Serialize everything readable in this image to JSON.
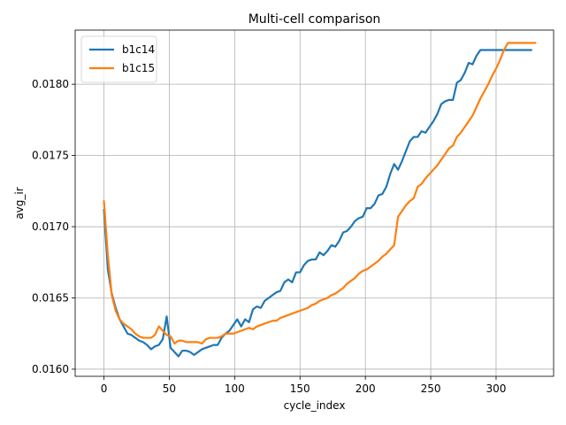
{
  "chart_data": {
    "type": "line",
    "title": "Multi-cell comparison",
    "xlabel": "cycle_index",
    "ylabel": "avg_ir",
    "xlim": [
      -22,
      344
    ],
    "ylim": [
      0.01595,
      0.01838
    ],
    "xticks": [
      0,
      50,
      100,
      150,
      200,
      250,
      300
    ],
    "yticks": [
      0.016,
      0.0165,
      0.017,
      0.0175,
      0.018
    ],
    "ytick_labels": [
      "0.0160",
      "0.0165",
      "0.0170",
      "0.0175",
      "0.0180"
    ],
    "grid": true,
    "legend_position": "top-left",
    "series": [
      {
        "name": "b1c14",
        "color": "#1f77b4",
        "x": [
          0,
          3,
          6,
          9,
          12,
          15,
          18,
          21,
          24,
          27,
          30,
          33,
          36,
          39,
          42,
          45,
          48,
          51,
          54,
          57,
          60,
          63,
          66,
          69,
          72,
          75,
          78,
          81,
          84,
          87,
          90,
          93,
          96,
          99,
          102,
          105,
          108,
          111,
          114,
          117,
          120,
          123,
          126,
          129,
          132,
          135,
          138,
          141,
          144,
          147,
          150,
          153,
          156,
          159,
          162,
          165,
          168,
          171,
          174,
          177,
          180,
          183,
          186,
          189,
          192,
          195,
          198,
          201,
          204,
          207,
          210,
          213,
          216,
          219,
          222,
          225,
          228,
          231,
          234,
          237,
          240,
          243,
          246,
          249,
          252,
          255,
          258,
          261,
          264,
          267,
          270,
          273,
          276,
          279,
          282,
          285,
          288,
          291,
          294,
          297,
          300,
          303,
          306,
          309,
          312,
          315,
          318,
          321,
          324,
          327
        ],
        "y": [
          0.01712,
          0.0167,
          0.01653,
          0.01643,
          0.01635,
          0.0163,
          0.01625,
          0.01624,
          0.01622,
          0.0162,
          0.01619,
          0.01617,
          0.01614,
          0.01616,
          0.01617,
          0.01621,
          0.01637,
          0.01615,
          0.01612,
          0.01609,
          0.01613,
          0.01613,
          0.01612,
          0.0161,
          0.01612,
          0.01614,
          0.01615,
          0.01616,
          0.01617,
          0.01617,
          0.01622,
          0.01625,
          0.01627,
          0.01631,
          0.01635,
          0.0163,
          0.01635,
          0.01633,
          0.01642,
          0.01644,
          0.01643,
          0.01648,
          0.0165,
          0.01652,
          0.01654,
          0.01655,
          0.01661,
          0.01663,
          0.01661,
          0.01668,
          0.01668,
          0.01673,
          0.01676,
          0.01677,
          0.01677,
          0.01682,
          0.0168,
          0.01683,
          0.01687,
          0.01686,
          0.0169,
          0.01696,
          0.01697,
          0.017,
          0.01704,
          0.01706,
          0.01707,
          0.01713,
          0.01713,
          0.01716,
          0.01722,
          0.01723,
          0.01728,
          0.01737,
          0.01744,
          0.0174,
          0.01746,
          0.01753,
          0.0176,
          0.01763,
          0.01763,
          0.01767,
          0.01766,
          0.0177,
          0.01774,
          0.01779,
          0.01786,
          0.01788,
          0.01789,
          0.01789,
          0.01801,
          0.01803,
          0.01808,
          0.01815,
          0.01814,
          0.0182,
          0.01824,
          0.01824,
          0.01824,
          0.01824,
          0.01824,
          0.01824,
          0.01824,
          0.01824,
          0.01824,
          0.01824,
          0.01824,
          0.01824,
          0.01824,
          0.01824
        ]
      },
      {
        "name": "b1c15",
        "color": "#ff7f0e",
        "x": [
          0,
          3,
          6,
          9,
          12,
          15,
          18,
          21,
          24,
          27,
          30,
          33,
          36,
          39,
          42,
          45,
          48,
          51,
          54,
          57,
          60,
          63,
          66,
          69,
          72,
          75,
          78,
          81,
          84,
          87,
          90,
          93,
          96,
          99,
          102,
          105,
          108,
          111,
          114,
          117,
          120,
          123,
          126,
          129,
          132,
          135,
          138,
          141,
          144,
          147,
          150,
          153,
          156,
          159,
          162,
          165,
          168,
          171,
          174,
          177,
          180,
          183,
          186,
          189,
          192,
          195,
          198,
          201,
          204,
          207,
          210,
          213,
          216,
          219,
          222,
          225,
          228,
          231,
          234,
          237,
          240,
          243,
          246,
          249,
          252,
          255,
          258,
          261,
          264,
          267,
          270,
          273,
          276,
          279,
          282,
          285,
          288,
          291,
          294,
          297,
          300,
          303,
          306,
          309,
          312,
          315,
          318,
          321,
          324,
          327,
          330
        ],
        "y": [
          0.01718,
          0.0168,
          0.01652,
          0.01641,
          0.01635,
          0.01632,
          0.0163,
          0.01628,
          0.01625,
          0.01623,
          0.01622,
          0.01622,
          0.01622,
          0.01624,
          0.0163,
          0.01627,
          0.01624,
          0.01623,
          0.01618,
          0.0162,
          0.0162,
          0.01619,
          0.01619,
          0.01619,
          0.01619,
          0.01618,
          0.01621,
          0.01622,
          0.01622,
          0.01622,
          0.01623,
          0.01625,
          0.01625,
          0.01625,
          0.01626,
          0.01627,
          0.01628,
          0.01629,
          0.01628,
          0.0163,
          0.01631,
          0.01632,
          0.01633,
          0.01634,
          0.01634,
          0.01636,
          0.01637,
          0.01638,
          0.01639,
          0.0164,
          0.01641,
          0.01642,
          0.01643,
          0.01645,
          0.01646,
          0.01648,
          0.01649,
          0.0165,
          0.01652,
          0.01653,
          0.01655,
          0.01657,
          0.0166,
          0.01662,
          0.01664,
          0.01667,
          0.01669,
          0.0167,
          0.01672,
          0.01674,
          0.01676,
          0.01679,
          0.01681,
          0.01684,
          0.01687,
          0.01707,
          0.01711,
          0.01715,
          0.01718,
          0.0172,
          0.01728,
          0.0173,
          0.01734,
          0.01737,
          0.0174,
          0.01743,
          0.01747,
          0.01751,
          0.01755,
          0.01757,
          0.01763,
          0.01766,
          0.0177,
          0.01774,
          0.01778,
          0.01784,
          0.0179,
          0.01795,
          0.018,
          0.01806,
          0.01811,
          0.01817,
          0.01824,
          0.01829,
          0.01829,
          0.01829,
          0.01829,
          0.01829,
          0.01829,
          0.01829,
          0.01829
        ]
      }
    ]
  }
}
